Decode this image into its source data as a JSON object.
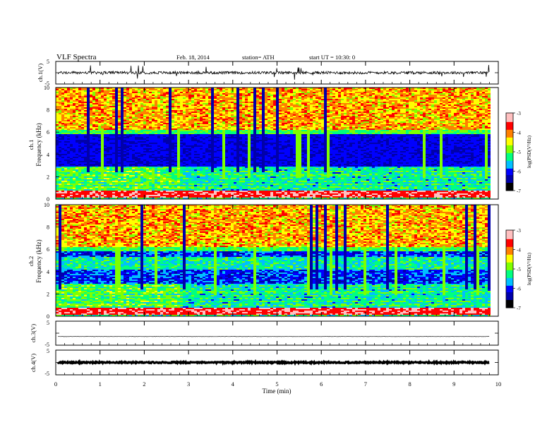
{
  "header": {
    "title": "VLF Spectra",
    "date": "Feb. 18, 2014",
    "station": "station= ATH",
    "start": "start  UT =   10:30: 0"
  },
  "colors": {
    "colormap": [
      "#000000",
      "#0000aa",
      "#0000ff",
      "#00bfff",
      "#00ff80",
      "#7fff00",
      "#ffff00",
      "#ff8000",
      "#ff0000",
      "#ffc0c0"
    ]
  },
  "chart_data": [
    {
      "type": "line",
      "ylabel": "ch.1(V)",
      "ylim": [
        -5,
        5
      ],
      "yticks": [
        "5",
        "-5"
      ],
      "xlim": [
        0,
        10
      ],
      "signal": {
        "baseline": 0.0,
        "noise_amplitude": 0.6,
        "spike_amplitude": 1.6
      }
    },
    {
      "type": "heatmap",
      "ylabel_top": "ch.1",
      "ylabel": "Frequency  (kHz)",
      "ylim": [
        0,
        10
      ],
      "yticks": [
        "0",
        "2",
        "4",
        "6",
        "8",
        "10"
      ],
      "xlim": [
        0,
        10
      ],
      "data_end_min": 9.8,
      "transition_min": 2.8,
      "colorbar": {
        "label": "log(PSD(V²/Hz)",
        "range": [
          -7,
          -3
        ],
        "ticks": [
          "-3",
          "-4",
          "-5",
          "-6",
          "-7"
        ]
      }
    },
    {
      "type": "heatmap",
      "ylabel_top": "ch.2",
      "ylabel": "Frequency  (kHz)",
      "ylim": [
        0,
        10
      ],
      "yticks": [
        "0",
        "2",
        "4",
        "6",
        "8",
        "10"
      ],
      "xlim": [
        0,
        10
      ],
      "data_end_min": 9.8,
      "transition_min": 2.8,
      "colorbar": {
        "label": "log(PSD(V²/Hz)",
        "range": [
          -7,
          -3
        ],
        "ticks": [
          "-3",
          "-4",
          "-5",
          "-6",
          "-7"
        ]
      }
    },
    {
      "type": "line",
      "ylabel": "ch.3(V)",
      "ylim": [
        -5,
        5
      ],
      "yticks": [
        "5",
        "-5"
      ],
      "xlim": [
        0,
        10
      ],
      "signal": {
        "baseline": -1.4,
        "noise_amplitude": 0.05,
        "spike_amplitude": 0.0
      }
    },
    {
      "type": "line",
      "ylabel": "ch.4(V)",
      "ylim": [
        -5,
        5
      ],
      "yticks": [
        "5",
        "-5"
      ],
      "xlim": [
        0,
        10
      ],
      "xlabel": "Time  (min)",
      "xticks": [
        "0",
        "1",
        "2",
        "3",
        "4",
        "5",
        "6",
        "7",
        "8",
        "9",
        "10"
      ],
      "signal": {
        "baseline": 0.0,
        "noise_amplitude": 0.25,
        "spike_amplitude": 0.0
      }
    }
  ]
}
